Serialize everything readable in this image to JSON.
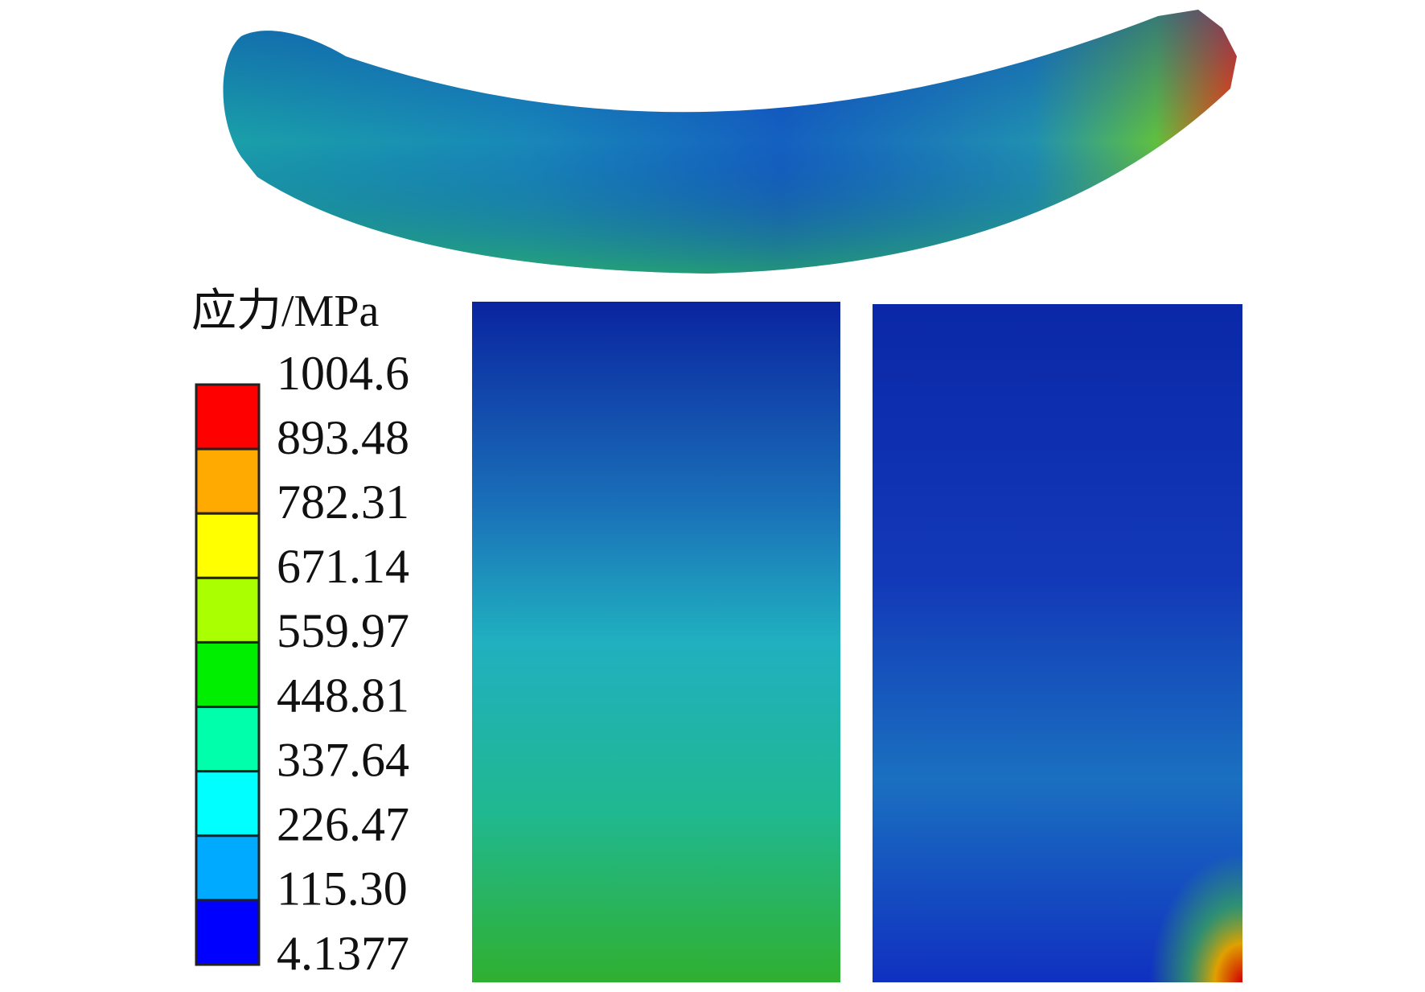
{
  "legend": {
    "title": "应力/MPa",
    "labels": [
      "1004.6",
      "893.48",
      "782.31",
      "671.14",
      "559.97",
      "448.81",
      "337.64",
      "226.47",
      "115.30",
      "4.1377"
    ],
    "colors": [
      "#ff0000",
      "#ffaa00",
      "#ffff00",
      "#aaff00",
      "#00ee00",
      "#00ffaa",
      "#00ffff",
      "#00aaff",
      "#0000ff"
    ]
  }
}
